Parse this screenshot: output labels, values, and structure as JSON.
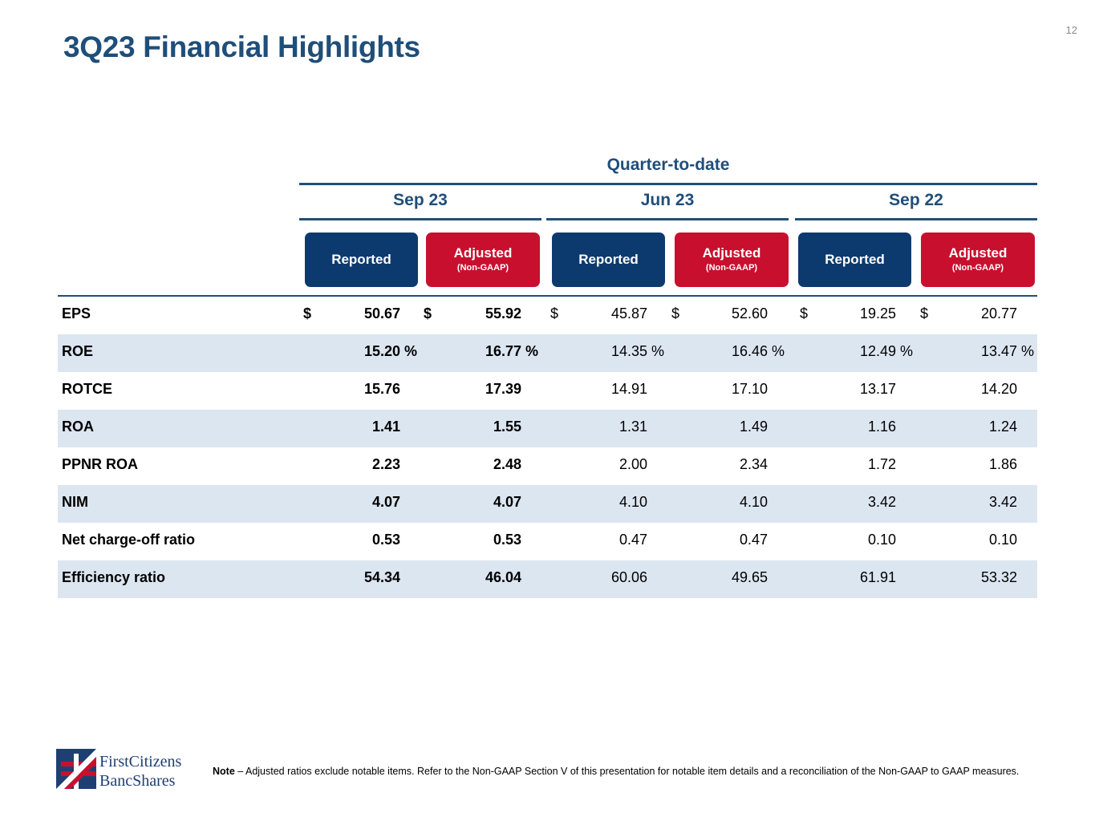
{
  "page_number": "12",
  "title": "3Q23 Financial Highlights",
  "header": {
    "group_label": "Quarter-to-date",
    "periods": [
      "Sep 23",
      "Jun 23",
      "Sep 22"
    ],
    "reported_label": "Reported",
    "adjusted_label": "Adjusted",
    "adjusted_sub": "(Non-GAAP)"
  },
  "rows": [
    {
      "label": "EPS",
      "values": [
        "50.67",
        "55.92",
        "45.87",
        "52.60",
        "19.25",
        "20.77"
      ],
      "dollar": "$"
    },
    {
      "label": "ROE",
      "values": [
        "15.20",
        "16.77",
        "14.35",
        "16.46",
        "12.49",
        "13.47"
      ],
      "unit": "%"
    },
    {
      "label": "ROTCE",
      "values": [
        "15.76",
        "17.39",
        "14.91",
        "17.10",
        "13.17",
        "14.20"
      ]
    },
    {
      "label": "ROA",
      "values": [
        "1.41",
        "1.55",
        "1.31",
        "1.49",
        "1.16",
        "1.24"
      ]
    },
    {
      "label": "PPNR ROA",
      "values": [
        "2.23",
        "2.48",
        "2.00",
        "2.34",
        "1.72",
        "1.86"
      ]
    },
    {
      "label": "NIM",
      "values": [
        "4.07",
        "4.07",
        "4.10",
        "4.10",
        "3.42",
        "3.42"
      ]
    },
    {
      "label": "Net charge-off ratio",
      "values": [
        "0.53",
        "0.53",
        "0.47",
        "0.47",
        "0.10",
        "0.10"
      ]
    },
    {
      "label": "Efficiency ratio",
      "values": [
        "54.34",
        "46.04",
        "60.06",
        "49.65",
        "61.91",
        "53.32"
      ]
    }
  ],
  "note": {
    "bold": "Note",
    "text": " – Adjusted ratios exclude notable items. Refer to the Non-GAAP Section V of this presentation for notable item details and a reconciliation of the Non-GAAP to GAAP measures."
  },
  "logo": {
    "line1": "FirstCitizens",
    "line2": "BancShares",
    "icon": "flag-logo-icon",
    "colors": {
      "navy": "#1f3f73",
      "red": "#c8102e"
    }
  },
  "colors": {
    "title": "#1f4e79",
    "reported": "#0d3a6e",
    "adjusted": "#c8102e",
    "row_shade": "#dce6f1"
  }
}
